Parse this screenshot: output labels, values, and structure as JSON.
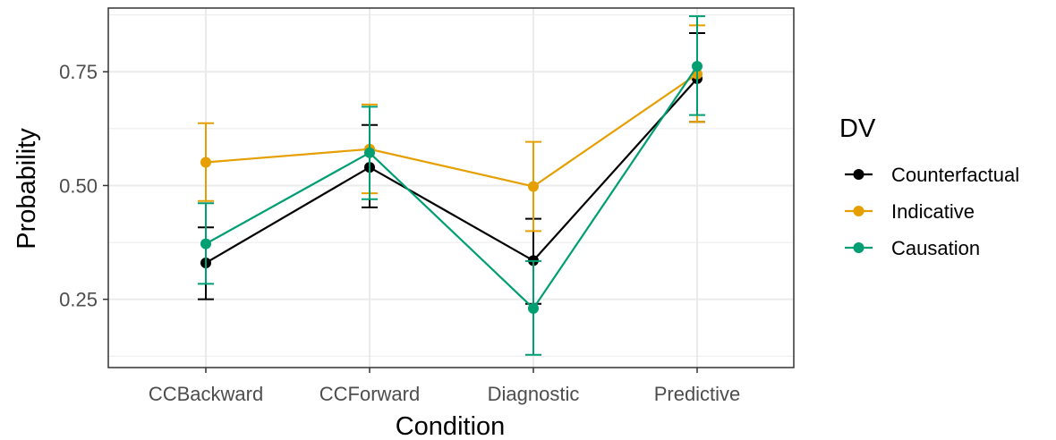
{
  "chart_data": {
    "type": "line",
    "xlabel": "Condition",
    "ylabel": "Probability",
    "categories": [
      "CCBackward",
      "CCForward",
      "Diagnostic",
      "Predictive"
    ],
    "ylim": [
      0.1,
      0.89
    ],
    "yticks": [
      0.25,
      0.5,
      0.75
    ],
    "ytick_labels": [
      "0.25",
      "0.50",
      "0.75"
    ],
    "grid": true,
    "legend": {
      "title": "DV",
      "position": "right"
    },
    "series": [
      {
        "name": "Counterfactual",
        "color": "#000000",
        "values": [
          0.33,
          0.54,
          0.335,
          0.735
        ],
        "error_low": [
          0.25,
          0.452,
          0.24,
          0.64
        ],
        "error_high": [
          0.408,
          0.633,
          0.427,
          0.835
        ]
      },
      {
        "name": "Indicative",
        "color": "#E69F00",
        "values": [
          0.551,
          0.58,
          0.498,
          0.745
        ],
        "error_low": [
          0.466,
          0.483,
          0.4,
          0.64
        ],
        "error_high": [
          0.637,
          0.678,
          0.596,
          0.852
        ]
      },
      {
        "name": "Causation",
        "color": "#009E73",
        "values": [
          0.372,
          0.572,
          0.23,
          0.762
        ],
        "error_low": [
          0.284,
          0.47,
          0.128,
          0.655
        ],
        "error_high": [
          0.461,
          0.673,
          0.334,
          0.872
        ]
      }
    ]
  }
}
